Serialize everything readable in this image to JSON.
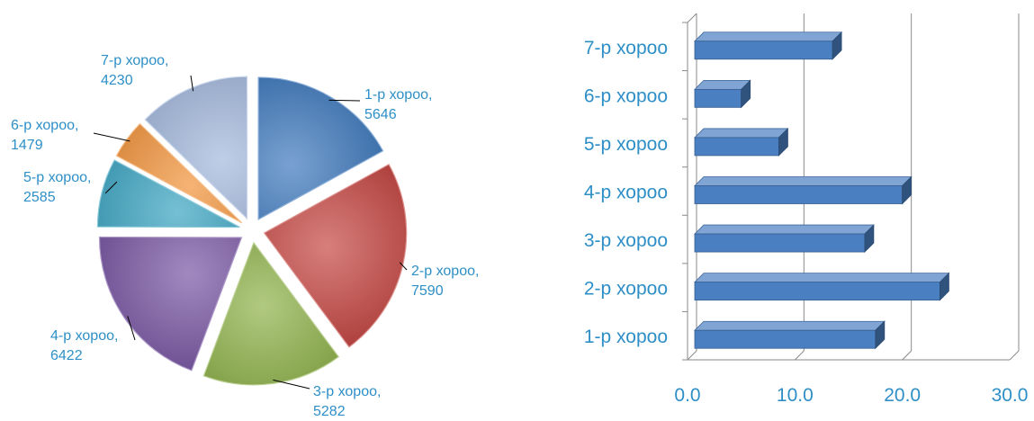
{
  "chart_data": [
    {
      "type": "pie",
      "exploded": true,
      "categories": [
        "1-р хороо",
        "2-р хороо",
        "3-р хороо",
        "4-р хороо",
        "5-р хороо",
        "6-р хороо",
        "7-р хороо"
      ],
      "values": [
        5646,
        7590,
        5282,
        6422,
        2585,
        1479,
        4230
      ],
      "labels": [
        {
          "name": "1-р хороо,",
          "value": "5646"
        },
        {
          "name": "2-р хороо,",
          "value": "7590"
        },
        {
          "name": "3-р хороо,",
          "value": "5282"
        },
        {
          "name": "4-р хороо,",
          "value": "6422"
        },
        {
          "name": "5-р хороо,",
          "value": "2585"
        },
        {
          "name": "6-р хороо,",
          "value": "1479"
        },
        {
          "name": "7-р хороо,",
          "value": "4230"
        }
      ],
      "colors": [
        "#2f6eb8",
        "#c23a35",
        "#86ac3c",
        "#6e4a9c",
        "#2a9cbc",
        "#f08a2a",
        "#9db4da"
      ],
      "legend": "none"
    },
    {
      "type": "bar",
      "orientation": "horizontal",
      "style": "3d",
      "categories": [
        "1-р хороо",
        "2-р хороо",
        "3-р хороо",
        "4-р хороо",
        "5-р хороо",
        "6-р хороо",
        "7-р хороо"
      ],
      "values": [
        17.5,
        23.5,
        16.5,
        20.0,
        8.5,
        5.0,
        13.5
      ],
      "xlim": [
        0,
        30
      ],
      "ticks": [
        "0.0",
        "10.0",
        "20.0",
        "30.0"
      ],
      "grid": true,
      "bar_color": "#4a7fc1",
      "legend": "none"
    }
  ]
}
